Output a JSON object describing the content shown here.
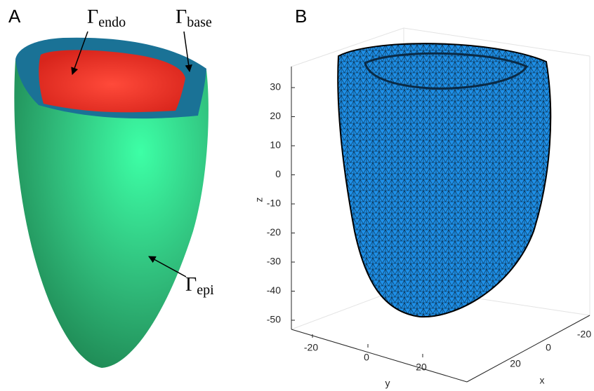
{
  "panels": [
    {
      "label": "A",
      "annotations": [
        {
          "symbol": "Γ",
          "subscript": "endo"
        },
        {
          "symbol": "Γ",
          "subscript": "base"
        },
        {
          "symbol": "Γ",
          "subscript": "epi"
        }
      ]
    },
    {
      "label": "B",
      "axes": {
        "z": {
          "label": "z",
          "ticks": [
            30,
            20,
            10,
            0,
            -10,
            -20,
            -30,
            -40,
            -50
          ]
        },
        "y": {
          "label": "y",
          "ticks": [
            -20,
            0,
            20
          ]
        },
        "x": {
          "label": "x",
          "ticks": [
            -20,
            0,
            20
          ]
        }
      }
    }
  ]
}
